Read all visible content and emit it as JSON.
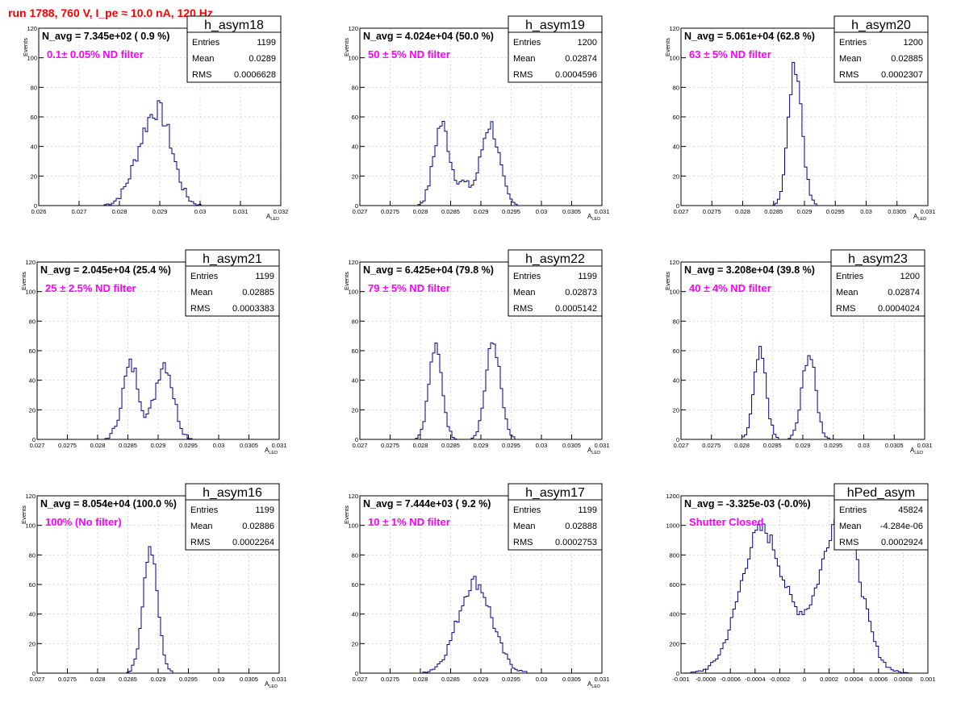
{
  "run_title": "run 1788,   760 V, I_pe ≈ 10.0 nA, 120 Hz",
  "colors": {
    "histogram": "#00008b",
    "annotation": "#ff00ff",
    "title": "#ff0000",
    "frame": "#000000",
    "grid": "#c8c8c8"
  },
  "chart_data": [
    {
      "type": "histogram",
      "name": "h_asym18",
      "navg": "N_avg = 7.345e+02 ( 0.9 %)",
      "note": "0.1± 0.05% ND filter",
      "stats": {
        "Entries": "1199",
        "Mean": "0.0289",
        "RMS": "0.0006628"
      },
      "xlim": [
        0.026,
        0.032
      ],
      "ylim": [
        0,
        120
      ],
      "xticks": [
        "0.026",
        "0.027",
        "0.028",
        "0.029",
        "0.03",
        "0.031",
        "0.032"
      ],
      "yticks": [
        "0",
        "20",
        "40",
        "60",
        "80",
        "100",
        "120"
      ],
      "xlabel": "A_LED",
      "ylabel": "Events",
      "grid": true,
      "bins": [
        [
          0.0267,
          0.0288
        ],
        [
          0.0276,
          0.0292,
          0.0288,
          0.0284,
          0.029
        ],
        [
          0.02775,
          0.0294,
          0.02885,
          0.0283
        ],
        [
          0.0286,
          0.029,
          0.0282,
          0.02905
        ]
      ]
    },
    {
      "type": "histogram",
      "name": "h_asym19",
      "navg": "N_avg = 4.024e+04 (50.0 %)",
      "note": "50 ± 5% ND filter",
      "stats": {
        "Entries": "1200",
        "Mean": "0.02874",
        "RMS": "0.0004596"
      },
      "xlim": [
        0.027,
        0.031
      ],
      "ylim": [
        0,
        120
      ],
      "xticks": [
        "0.027",
        "0.0275",
        "0.028",
        "0.0285",
        "0.029",
        "0.0295",
        "0.03",
        "0.0305",
        "0.031"
      ],
      "yticks": [
        "0",
        "20",
        "40",
        "60",
        "80",
        "100",
        "120"
      ],
      "xlabel": "A_LED",
      "ylabel": "Events",
      "grid": true,
      "bins": [
        [
          0.02725,
          0.02825
        ],
        [
          0.0283,
          0.0292
        ]
      ]
    },
    {
      "type": "histogram",
      "name": "h_asym20",
      "navg": "N_avg = 5.061e+04 (62.8 %)",
      "note": "63 ± 5% ND filter",
      "stats": {
        "Entries": "1200",
        "Mean": "0.02885",
        "RMS": "0.0002307"
      },
      "xlim": [
        0.027,
        0.031
      ],
      "ylim": [
        0,
        120
      ],
      "xticks": [
        "0.027",
        "0.0275",
        "0.028",
        "0.0285",
        "0.029",
        "0.0295",
        "0.03",
        "0.0305",
        "0.031"
      ],
      "yticks": [
        "0",
        "20",
        "40",
        "60",
        "80",
        "100",
        "120"
      ],
      "xlabel": "A_LED",
      "ylabel": "Events",
      "grid": true,
      "bins": [
        [
          0.0288,
          0.0289
        ]
      ]
    },
    {
      "type": "histogram",
      "name": "h_asym21",
      "navg": "N_avg = 2.045e+04 (25.4 %)",
      "note": "25 ± 2.5% ND filter",
      "stats": {
        "Entries": "1199",
        "Mean": "0.02885",
        "RMS": "0.0003383"
      },
      "xlim": [
        0.027,
        0.031
      ],
      "ylim": [
        0,
        120
      ],
      "xticks": [
        "0.027",
        "0.0275",
        "0.028",
        "0.0285",
        "0.029",
        "0.0295",
        "0.03",
        "0.0305",
        "0.031"
      ],
      "yticks": [
        "0",
        "20",
        "40",
        "60",
        "80",
        "100",
        "120"
      ],
      "xlabel": "A_LED",
      "ylabel": "Events",
      "grid": true,
      "bins": [
        [
          0.0285,
          0.02905
        ]
      ]
    },
    {
      "type": "histogram",
      "name": "h_asym22",
      "navg": "N_avg = 6.425e+04 (79.8 %)",
      "note": "79 ± 5% ND filter",
      "stats": {
        "Entries": "1199",
        "Mean": "0.02873",
        "RMS": "0.0005142"
      },
      "xlim": [
        0.027,
        0.031
      ],
      "ylim": [
        0,
        120
      ],
      "xticks": [
        "0.027",
        "0.0275",
        "0.028",
        "0.0285",
        "0.029",
        "0.0295",
        "0.03",
        "0.0305",
        "0.031"
      ],
      "yticks": [
        "0",
        "20",
        "40",
        "60",
        "80",
        "100",
        "120"
      ],
      "xlabel": "A_LED",
      "ylabel": "Events",
      "grid": true,
      "bins": [
        [
          0.0282,
          0.0292
        ]
      ]
    },
    {
      "type": "histogram",
      "name": "h_asym23",
      "navg": "N_avg = 3.208e+04 (39.8 %)",
      "note": "40 ± 4% ND filter",
      "stats": {
        "Entries": "1200",
        "Mean": "0.02874",
        "RMS": "0.0004024"
      },
      "xlim": [
        0.027,
        0.031
      ],
      "ylim": [
        0,
        120
      ],
      "xticks": [
        "0.027",
        "0.0275",
        "0.028",
        "0.0285",
        "0.029",
        "0.0295",
        "0.03",
        "0.0305",
        "0.031"
      ],
      "yticks": [
        "0",
        "20",
        "40",
        "60",
        "80",
        "100",
        "120"
      ],
      "xlabel": "A_LED",
      "ylabel": "Events",
      "grid": true,
      "bins": [
        [
          0.0283,
          0.0291
        ]
      ]
    },
    {
      "type": "histogram",
      "name": "h_asym16",
      "navg": "N_avg = 8.054e+04 (100.0 %)",
      "note": "100% (No filter)",
      "stats": {
        "Entries": "1199",
        "Mean": "0.02886",
        "RMS": "0.0002264"
      },
      "xlim": [
        0.027,
        0.031
      ],
      "ylim": [
        0,
        120
      ],
      "xticks": [
        "0.027",
        "0.0275",
        "0.028",
        "0.0285",
        "0.029",
        "0.0295",
        "0.03",
        "0.0305",
        "0.031"
      ],
      "yticks": [
        "0",
        "20",
        "40",
        "60",
        "80",
        "100",
        "120"
      ],
      "xlabel": "A_LED",
      "ylabel": "Events",
      "grid": true,
      "bins": [
        [
          0.02887
        ]
      ]
    },
    {
      "type": "histogram",
      "name": "h_asym17",
      "navg": "N_avg = 7.444e+03 ( 9.2 %)",
      "note": "10 ± 1% ND filter",
      "stats": {
        "Entries": "1199",
        "Mean": "0.02888",
        "RMS": "0.0002753"
      },
      "xlim": [
        0.027,
        0.031
      ],
      "ylim": [
        0,
        120
      ],
      "xticks": [
        "0.027",
        "0.0275",
        "0.028",
        "0.0285",
        "0.029",
        "0.0295",
        "0.03",
        "0.0305",
        "0.031"
      ],
      "yticks": [
        "0",
        "20",
        "40",
        "60",
        "80",
        "100",
        "120"
      ],
      "xlabel": "A_LED",
      "ylabel": "Events",
      "grid": true,
      "bins": [
        [
          0.02888
        ]
      ]
    },
    {
      "type": "histogram",
      "name": "hPed_asym",
      "navg": "N_avg = -3.325e-03 (-0.0%)",
      "note": "Shutter Closed",
      "stats": {
        "Entries": "45824",
        "Mean": "-4.284e-06",
        "RMS": "0.0002924"
      },
      "xlim": [
        -0.001,
        0.001
      ],
      "ylim": [
        0,
        1300
      ],
      "xticks": [
        "-0.001",
        "-0.0008",
        "-0.0006",
        "-0.0004",
        "-0.0002",
        "0",
        "0.0002",
        "0.0004",
        "0.0006",
        "0.0008",
        "0.001"
      ],
      "yticks": [
        "0",
        "200",
        "400",
        "600",
        "800",
        "1000",
        "1200"
      ],
      "xlabel": "",
      "ylabel": "",
      "grid": true,
      "bins": [
        [
          -0.00017,
          0.00028
        ]
      ]
    }
  ]
}
